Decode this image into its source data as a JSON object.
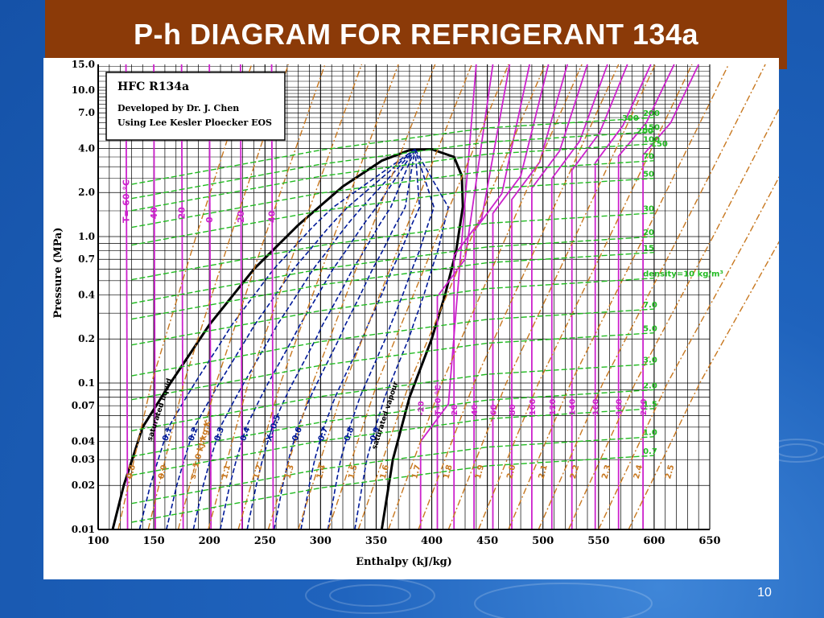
{
  "slide": {
    "title": "P-h DIAGRAM FOR REFRIGERANT 134a",
    "slide_number": "10"
  },
  "colors": {
    "title_bg": "#8b3a08",
    "slide_bg": "#1a5bb3",
    "isotherm": "#cc22cc",
    "quality": "#001a99",
    "entropy": "#c87820",
    "density": "#22bb22",
    "saturation": "#000000"
  },
  "chart_data": {
    "type": "line",
    "title": "",
    "xlabel": "Enthalpy (kJ/kg)",
    "ylabel": "Pressure (MPa)",
    "xlim": [
      100,
      650
    ],
    "ylim": [
      0.01,
      15.0
    ],
    "y_scale": "log",
    "grid": true,
    "x_ticks": [
      "100",
      "150",
      "200",
      "250",
      "300",
      "350",
      "400",
      "450",
      "500",
      "550",
      "600",
      "650"
    ],
    "y_ticks": [
      {
        "value": 15.0,
        "label": "15.0"
      },
      {
        "value": 10.0,
        "label": "10.0"
      },
      {
        "value": 7.0,
        "label": "7.0"
      },
      {
        "value": 4.0,
        "label": "4.0"
      },
      {
        "value": 2.0,
        "label": "2.0"
      },
      {
        "value": 1.0,
        "label": "1.0"
      },
      {
        "value": 0.7,
        "label": "0.7"
      },
      {
        "value": 0.4,
        "label": "0.4"
      },
      {
        "value": 0.2,
        "label": "0.2"
      },
      {
        "value": 0.1,
        "label": "0.1"
      },
      {
        "value": 0.07,
        "label": "0.07"
      },
      {
        "value": 0.04,
        "label": "0.04"
      },
      {
        "value": 0.03,
        "label": "0.03"
      },
      {
        "value": 0.02,
        "label": "0.02"
      },
      {
        "value": 0.01,
        "label": "0.01"
      }
    ],
    "info_box": {
      "line1": "HFC    R134a",
      "line2": "Developed by Dr. J. Chen",
      "line3": "Using Lee Kesler Ploecker EOS"
    },
    "series": [
      {
        "name": "saturated liquid",
        "x": [
          113,
          123,
          140,
          165,
          200,
          240,
          280,
          320,
          355,
          380
        ],
        "y": [
          0.01,
          0.02,
          0.05,
          0.1,
          0.25,
          0.6,
          1.2,
          2.2,
          3.3,
          3.9
        ]
      },
      {
        "name": "saturated vapour",
        "x": [
          355,
          365,
          380,
          400,
          412,
          422,
          428,
          427,
          420,
          400,
          380
        ],
        "y": [
          0.01,
          0.03,
          0.08,
          0.2,
          0.4,
          0.8,
          1.6,
          2.6,
          3.5,
          3.95,
          3.9
        ]
      }
    ],
    "saturated_liquid_label": "saturated liquid",
    "saturated_vapour_label": "saturated vapour",
    "quality_lines": [
      {
        "label": "0.1",
        "value": 0.1
      },
      {
        "label": "0.2",
        "value": 0.2
      },
      {
        "label": "0.3",
        "value": 0.3
      },
      {
        "label": "0.4",
        "value": 0.4
      },
      {
        "label": "X=0.5",
        "value": 0.5
      },
      {
        "label": "0.6",
        "value": 0.6
      },
      {
        "label": "0.7",
        "value": 0.7
      },
      {
        "label": "0.8",
        "value": 0.8
      },
      {
        "label": "0.9",
        "value": 0.9
      }
    ],
    "isotherms_liquid": [
      {
        "label": "T=-60 °C",
        "h": 125
      },
      {
        "label": "-40",
        "h": 150
      },
      {
        "label": "-20",
        "h": 175
      },
      {
        "label": "0",
        "h": 200
      },
      {
        "label": "20",
        "h": 228
      },
      {
        "label": "40",
        "h": 256
      }
    ],
    "isotherms_vapour": [
      {
        "label": "-20",
        "h": 390
      },
      {
        "label": "T=0 °C",
        "h": 405
      },
      {
        "label": "20",
        "h": 420
      },
      {
        "label": "40",
        "h": 438
      },
      {
        "label": "60",
        "h": 455
      },
      {
        "label": "80",
        "h": 472
      },
      {
        "label": "100",
        "h": 490
      },
      {
        "label": "120",
        "h": 508
      },
      {
        "label": "140",
        "h": 526
      },
      {
        "label": "160",
        "h": 547
      },
      {
        "label": "180",
        "h": 568
      },
      {
        "label": "200",
        "h": 590
      }
    ],
    "isotherms_supercritical": [
      {
        "label": "150"
      },
      {
        "label": "200"
      },
      {
        "label": "300"
      }
    ],
    "entropy_lines": [
      {
        "label": "0.8"
      },
      {
        "label": "0.9"
      },
      {
        "label": "s=1.0 kJ/kg.K"
      },
      {
        "label": "1.1"
      },
      {
        "label": "1.2"
      },
      {
        "label": "1.3"
      },
      {
        "label": "1.4"
      },
      {
        "label": "1.5"
      },
      {
        "label": "1.6"
      },
      {
        "label": "1.7"
      },
      {
        "label": "1.8"
      },
      {
        "label": "1.9"
      },
      {
        "label": "2.0"
      },
      {
        "label": "2.1"
      },
      {
        "label": "2.2"
      },
      {
        "label": "2.3"
      },
      {
        "label": "2.4"
      },
      {
        "label": "2.5"
      }
    ],
    "density_lines": [
      {
        "label": "200"
      },
      {
        "label": "150"
      },
      {
        "label": "100"
      },
      {
        "label": "70"
      },
      {
        "label": "50"
      },
      {
        "label": "30"
      },
      {
        "label": "20"
      },
      {
        "label": "15"
      },
      {
        "label": "density=10 kg/m³"
      },
      {
        "label": "7.0"
      },
      {
        "label": "5.0"
      },
      {
        "label": "3.0"
      },
      {
        "label": "2.0"
      },
      {
        "label": "1.5"
      },
      {
        "label": "1.0"
      },
      {
        "label": "0.7"
      }
    ]
  }
}
